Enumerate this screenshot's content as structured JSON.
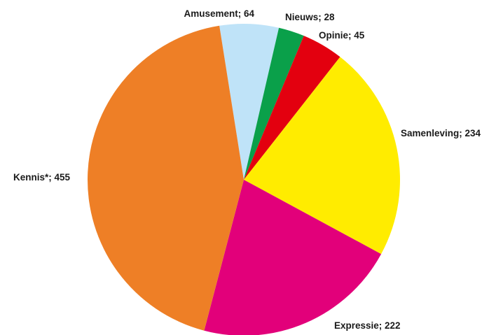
{
  "chart_data": {
    "type": "pie",
    "title": "",
    "start_angle_deg": 351,
    "direction": "clockwise",
    "slices": [
      {
        "label": "Amusement; 64",
        "category": "Amusement",
        "value": 64,
        "color": "#bfe3f8"
      },
      {
        "label": "Nieuws; 28",
        "category": "Nieuws",
        "value": 28,
        "color": "#0aa04a"
      },
      {
        "label": "Opinie; 45",
        "category": "Opinie",
        "value": 45,
        "color": "#e3000f"
      },
      {
        "label": "Samenleving; 234",
        "category": "Samenleving",
        "value": 234,
        "color": "#ffec00"
      },
      {
        "label": "Expressie; 222",
        "category": "Expressie",
        "value": 222,
        "color": "#e2007a"
      },
      {
        "label": "Kennis*; 455",
        "category": "Kennis*",
        "value": 455,
        "color": "#ee7f26"
      }
    ]
  }
}
